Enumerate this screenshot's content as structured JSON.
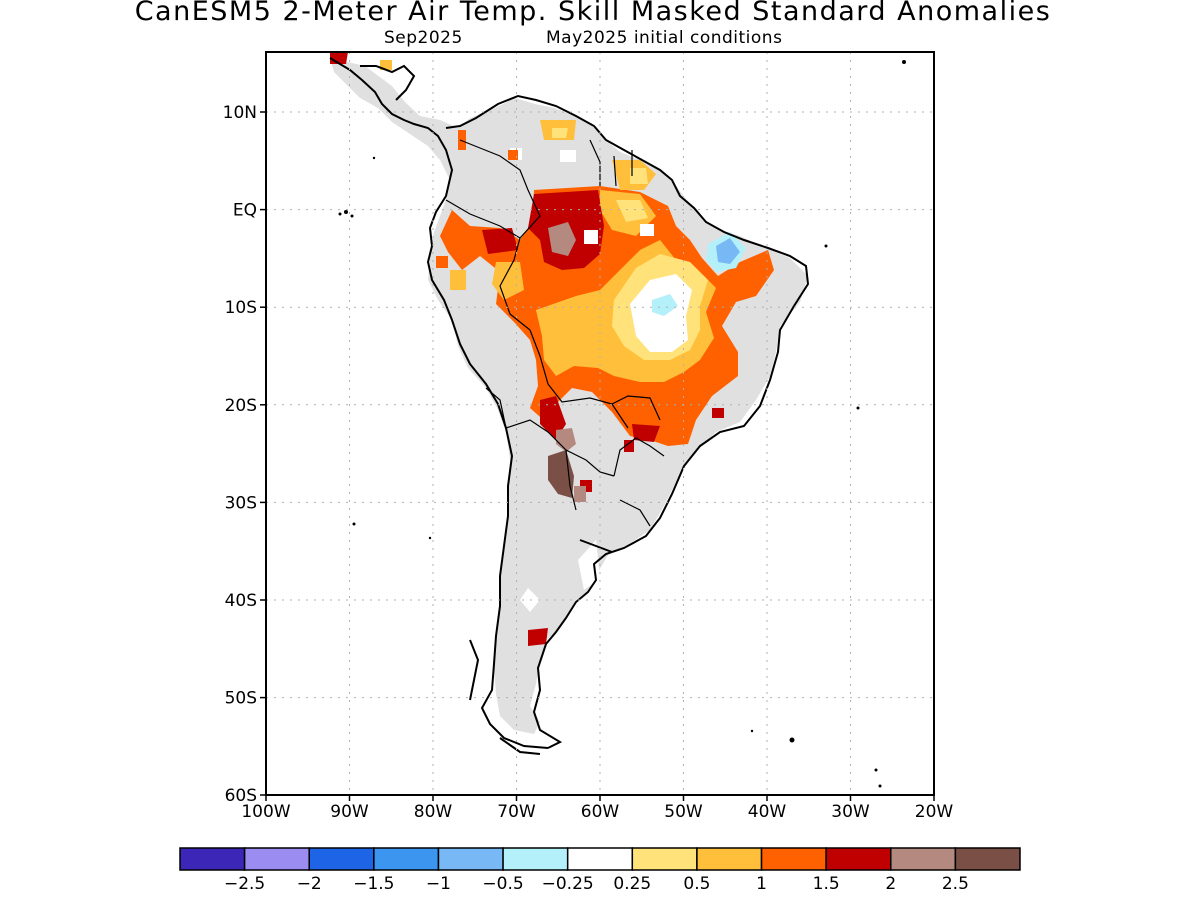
{
  "title": "CanESM5 2-Meter Air Temp. Skill Masked Standard Anomalies",
  "subtitle_left": "Sep2025",
  "subtitle_right": "May2025 initial conditions",
  "lat_labels": [
    "10N",
    "EQ",
    "10S",
    "20S",
    "30S",
    "40S",
    "50S",
    "60S"
  ],
  "lon_labels": [
    "100W",
    "90W",
    "80W",
    "70W",
    "60W",
    "50W",
    "40W",
    "30W",
    "20W"
  ],
  "colorbar": {
    "colors": [
      "#3c26b8",
      "#9b8cf2",
      "#1e64e6",
      "#3c96f0",
      "#78b9f5",
      "#b4f0fa",
      "#ffffff",
      "#ffe27a",
      "#ffbf3a",
      "#ff6000",
      "#c00000",
      "#b48a80",
      "#7a5046"
    ],
    "labels": [
      "-2.5",
      "-2",
      "-1.5",
      "-1",
      "-0.5",
      "-0.25",
      "0.25",
      "0.5",
      "1",
      "1.5",
      "2",
      "2.5"
    ]
  },
  "colors": {
    "land_masked": "#e0e0e0",
    "coast": "#000000",
    "grid": "#b0b0b0"
  }
}
